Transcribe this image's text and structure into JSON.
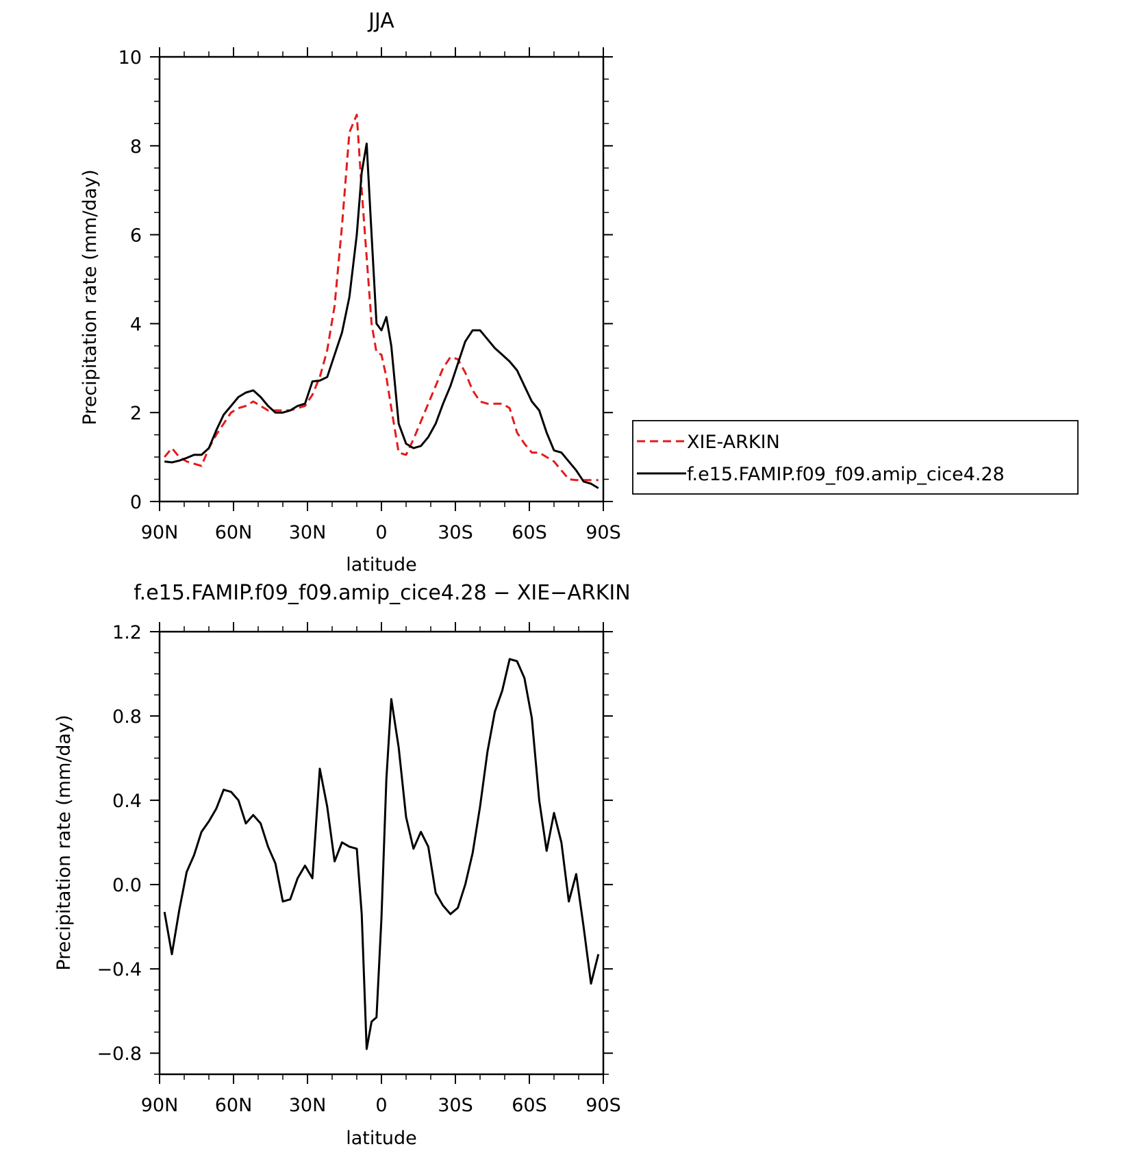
{
  "chart_data": [
    {
      "type": "line",
      "title": "JJA",
      "xlabel": "latitude",
      "ylabel": "Precipitation rate (mm/day)",
      "xlim": [
        90,
        -90
      ],
      "ylim": [
        0,
        10
      ],
      "xticks": [
        90,
        60,
        30,
        0,
        -30,
        -60,
        -90
      ],
      "xtick_labels": [
        "90N",
        "60N",
        "30N",
        "0",
        "30S",
        "60S",
        "90S"
      ],
      "yticks": [
        0,
        2,
        4,
        6,
        8,
        10
      ],
      "ytick_labels": [
        "0",
        "2",
        "4",
        "6",
        "8",
        "10"
      ],
      "legend": {
        "placement": "right"
      },
      "series": [
        {
          "name": "XIE-ARKIN",
          "color": "#e41a1c",
          "dash": "dashed",
          "x": [
            88,
            85,
            82,
            79,
            76,
            73,
            70,
            67,
            64,
            61,
            58,
            55,
            52,
            49,
            46,
            43,
            40,
            37,
            34,
            31,
            28,
            25,
            22,
            19,
            16,
            13,
            10,
            8,
            6,
            4,
            2,
            0,
            -2,
            -4,
            -7,
            -10,
            -13,
            -16,
            -19,
            -22,
            -25,
            -28,
            -31,
            -34,
            -37,
            -40,
            -43,
            -46,
            -49,
            -52,
            -55,
            -58,
            -61,
            -64,
            -67,
            -70,
            -73,
            -76,
            -79,
            -82,
            -85,
            -88
          ],
          "values": [
            1.0,
            1.2,
            1.0,
            0.9,
            0.85,
            0.8,
            1.2,
            1.5,
            1.75,
            2.0,
            2.1,
            2.15,
            2.25,
            2.15,
            2.05,
            2.05,
            2.05,
            2.05,
            2.1,
            2.15,
            2.4,
            2.8,
            3.4,
            4.4,
            6.2,
            8.3,
            8.7,
            7.0,
            5.5,
            4.0,
            3.35,
            3.3,
            2.8,
            2.1,
            1.1,
            1.05,
            1.4,
            1.8,
            2.2,
            2.6,
            3.0,
            3.25,
            3.2,
            2.9,
            2.5,
            2.25,
            2.2,
            2.2,
            2.2,
            2.1,
            1.55,
            1.3,
            1.1,
            1.1,
            1.0,
            0.9,
            0.7,
            0.5,
            0.48,
            0.48,
            0.48,
            0.48
          ]
        },
        {
          "name": "f.e15.FAMIP.f09_f09.amip_cice4.28",
          "color": "#000000",
          "dash": "solid",
          "x": [
            88,
            85,
            82,
            79,
            76,
            73,
            70,
            67,
            64,
            61,
            58,
            55,
            52,
            49,
            46,
            43,
            40,
            37,
            34,
            31,
            28,
            25,
            22,
            19,
            16,
            13,
            10,
            8,
            6,
            4,
            2,
            0,
            -2,
            -4,
            -7,
            -10,
            -13,
            -16,
            -19,
            -22,
            -25,
            -28,
            -31,
            -34,
            -37,
            -40,
            -43,
            -46,
            -49,
            -52,
            -55,
            -58,
            -61,
            -64,
            -67,
            -70,
            -73,
            -76,
            -79,
            -82,
            -85,
            -88
          ],
          "values": [
            0.9,
            0.88,
            0.92,
            0.98,
            1.05,
            1.05,
            1.2,
            1.6,
            1.95,
            2.15,
            2.35,
            2.45,
            2.5,
            2.35,
            2.15,
            2.0,
            2.0,
            2.05,
            2.15,
            2.2,
            2.7,
            2.72,
            2.8,
            3.3,
            3.8,
            4.6,
            6.0,
            7.4,
            8.05,
            6.0,
            4.0,
            3.85,
            4.15,
            3.5,
            1.75,
            1.3,
            1.2,
            1.25,
            1.45,
            1.75,
            2.2,
            2.6,
            3.1,
            3.6,
            3.85,
            3.85,
            3.65,
            3.45,
            3.3,
            3.15,
            2.95,
            2.6,
            2.25,
            2.05,
            1.55,
            1.15,
            1.1,
            0.9,
            0.7,
            0.45,
            0.4,
            0.3
          ]
        }
      ]
    },
    {
      "type": "line",
      "title": "f.e15.FAMIP.f09_f09.amip_cice4.28 − XIE−ARKIN",
      "xlabel": "latitude",
      "ylabel": "Precipitation rate (mm/day)",
      "xlim": [
        90,
        -90
      ],
      "ylim": [
        -0.9,
        1.2
      ],
      "xticks": [
        90,
        60,
        30,
        0,
        -30,
        -60,
        -90
      ],
      "xtick_labels": [
        "90N",
        "60N",
        "30N",
        "0",
        "30S",
        "60S",
        "90S"
      ],
      "yticks": [
        -0.8,
        -0.4,
        0.0,
        0.4,
        0.8,
        1.2
      ],
      "ytick_labels": [
        "−0.8",
        "−0.4",
        "0.0",
        "0.4",
        "0.8",
        "1.2"
      ],
      "series": [
        {
          "color": "#000000",
          "dash": "solid",
          "x": [
            88,
            85,
            82,
            79,
            76,
            73,
            70,
            67,
            64,
            61,
            58,
            55,
            52,
            49,
            46,
            43,
            40,
            37,
            34,
            31,
            28,
            25,
            22,
            19,
            16,
            13,
            10,
            8,
            6,
            4,
            2,
            0,
            -2,
            -4,
            -7,
            -10,
            -13,
            -16,
            -19,
            -22,
            -25,
            -28,
            -31,
            -34,
            -37,
            -40,
            -43,
            -46,
            -49,
            -52,
            -55,
            -58,
            -61,
            -64,
            -67,
            -70,
            -73,
            -76,
            -79,
            -82,
            -85,
            -88
          ],
          "values": [
            -0.13,
            -0.33,
            -0.12,
            0.06,
            0.14,
            0.25,
            0.3,
            0.36,
            0.45,
            0.44,
            0.4,
            0.29,
            0.33,
            0.29,
            0.18,
            0.1,
            -0.08,
            -0.07,
            0.03,
            0.09,
            0.03,
            0.55,
            0.37,
            0.11,
            0.2,
            0.18,
            0.17,
            -0.14,
            -0.78,
            -0.65,
            -0.63,
            -0.16,
            0.5,
            0.88,
            0.65,
            0.32,
            0.17,
            0.25,
            0.18,
            -0.04,
            -0.1,
            -0.14,
            -0.11,
            0.0,
            0.15,
            0.37,
            0.63,
            0.82,
            0.92,
            1.07,
            1.06,
            0.98,
            0.79,
            0.4,
            0.16,
            0.34,
            0.2,
            -0.08,
            0.05,
            -0.2,
            -0.47,
            -0.33
          ]
        }
      ]
    }
  ]
}
